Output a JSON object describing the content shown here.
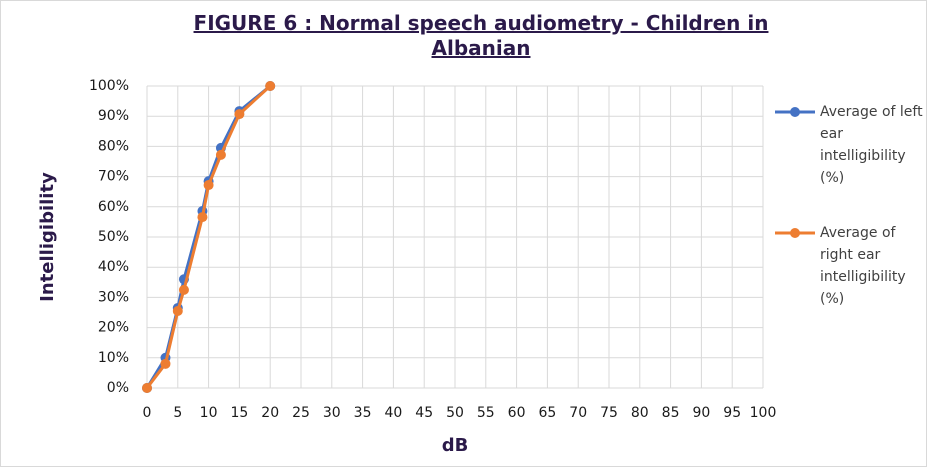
{
  "chart_data": {
    "type": "line",
    "title": "FIGURE 6 : Normal speech audiometry - Children in Albanian",
    "x_label": "dB",
    "y_label": "Intelligibility",
    "x": [
      0,
      3,
      5,
      6,
      9,
      10,
      12,
      15,
      20
    ],
    "series": [
      {
        "name": "Average of left ear intelligibility (%)",
        "color": "#4472c4",
        "values": [
          0,
          10,
          26.5,
          36,
          58.6,
          68.5,
          79.5,
          91.7,
          100
        ]
      },
      {
        "name": "Average of right ear intelligibility (%)",
        "color": "#ed7d31",
        "values": [
          0,
          8,
          25.5,
          32.5,
          56.6,
          67.2,
          77.2,
          90.7,
          100
        ]
      }
    ],
    "xlim": [
      0,
      100
    ],
    "xticks": [
      0,
      5,
      10,
      15,
      20,
      25,
      30,
      35,
      40,
      45,
      50,
      55,
      60,
      65,
      70,
      75,
      80,
      85,
      90,
      95,
      100
    ],
    "ylim": [
      0,
      100
    ],
    "yticks": [
      {
        "value": 0,
        "label": "0%"
      },
      {
        "value": 10,
        "label": "10%"
      },
      {
        "value": 20,
        "label": "20%"
      },
      {
        "value": 30,
        "label": "30%"
      },
      {
        "value": 40,
        "label": "40%"
      },
      {
        "value": 50,
        "label": "50%"
      },
      {
        "value": 60,
        "label": "60%"
      },
      {
        "value": 70,
        "label": "70%"
      },
      {
        "value": 80,
        "label": "80%"
      },
      {
        "value": 90,
        "label": "90%"
      },
      {
        "value": 100,
        "label": "100%"
      }
    ],
    "grid": true,
    "legend": "right"
  }
}
